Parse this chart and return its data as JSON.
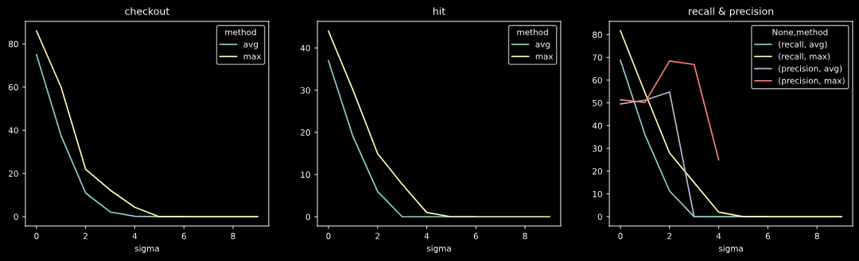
{
  "chart_data": [
    {
      "type": "line",
      "title": "checkout",
      "xlabel": "sigma",
      "x": [
        0,
        1,
        2,
        3,
        4,
        5,
        6,
        7,
        8,
        9
      ],
      "xlim": [
        -0.45,
        9.45
      ],
      "xticks": [
        0,
        2,
        4,
        6,
        8
      ],
      "ylim": [
        -4.3,
        90.4
      ],
      "yticks": [
        0,
        20,
        40,
        60,
        80
      ],
      "grid": false,
      "legend": "top right",
      "legend_title": "method",
      "series": [
        {
          "name": "avg",
          "color": "#8dd3c7",
          "values": [
            75,
            37.5,
            11,
            2.2,
            0.2,
            0,
            0,
            null,
            null,
            null
          ]
        },
        {
          "name": "max",
          "color": "#feffb3",
          "values": [
            86,
            60,
            22,
            12.3,
            4.4,
            0,
            0,
            0,
            0,
            0
          ]
        }
      ]
    },
    {
      "type": "line",
      "title": "hit",
      "xlabel": "sigma",
      "x": [
        0,
        1,
        2,
        3,
        4,
        5,
        6,
        7,
        8,
        9
      ],
      "xlim": [
        -0.45,
        9.45
      ],
      "xticks": [
        0,
        2,
        4,
        6,
        8
      ],
      "ylim": [
        -2.2,
        46.3
      ],
      "yticks": [
        0,
        10,
        20,
        30,
        40
      ],
      "grid": false,
      "legend": "top right",
      "legend_title": "method",
      "series": [
        {
          "name": "avg",
          "color": "#8dd3c7",
          "values": [
            37,
            19,
            6,
            0,
            0,
            0,
            0,
            null,
            null,
            null
          ]
        },
        {
          "name": "max",
          "color": "#feffb3",
          "values": [
            44,
            30,
            15,
            7.7,
            1,
            0,
            0,
            0,
            0,
            0
          ]
        }
      ]
    },
    {
      "type": "line",
      "title": "recall & precision",
      "xlabel": "sigma",
      "x": [
        0,
        1,
        2,
        3,
        4,
        5,
        6,
        7,
        8,
        9
      ],
      "xlim": [
        -0.45,
        9.45
      ],
      "xticks": [
        0,
        2,
        4,
        6,
        8
      ],
      "ylim": [
        -4.1,
        85.8
      ],
      "yticks": [
        0,
        10,
        20,
        30,
        40,
        50,
        60,
        70,
        80
      ],
      "grid": false,
      "legend": "top right",
      "legend_title": "None,method",
      "series": [
        {
          "name": "(recall, avg)",
          "color": "#8dd3c7",
          "values": [
            68.8,
            36,
            11.3,
            0,
            0,
            0,
            0,
            null,
            null,
            null
          ]
        },
        {
          "name": "(recall, max)",
          "color": "#feffb3",
          "values": [
            81.7,
            54.5,
            28,
            15,
            2,
            0,
            0,
            0,
            0,
            0
          ]
        },
        {
          "name": "(precision, avg)",
          "color": "#bfbbd9",
          "values": [
            49.5,
            51.2,
            54.8,
            0,
            null,
            null,
            null,
            null,
            null,
            null
          ]
        },
        {
          "name": "(precision, max)",
          "color": "#fa8174",
          "values": [
            51.4,
            50.2,
            68.4,
            66.9,
            25,
            null,
            null,
            null,
            null,
            null
          ]
        }
      ]
    }
  ]
}
